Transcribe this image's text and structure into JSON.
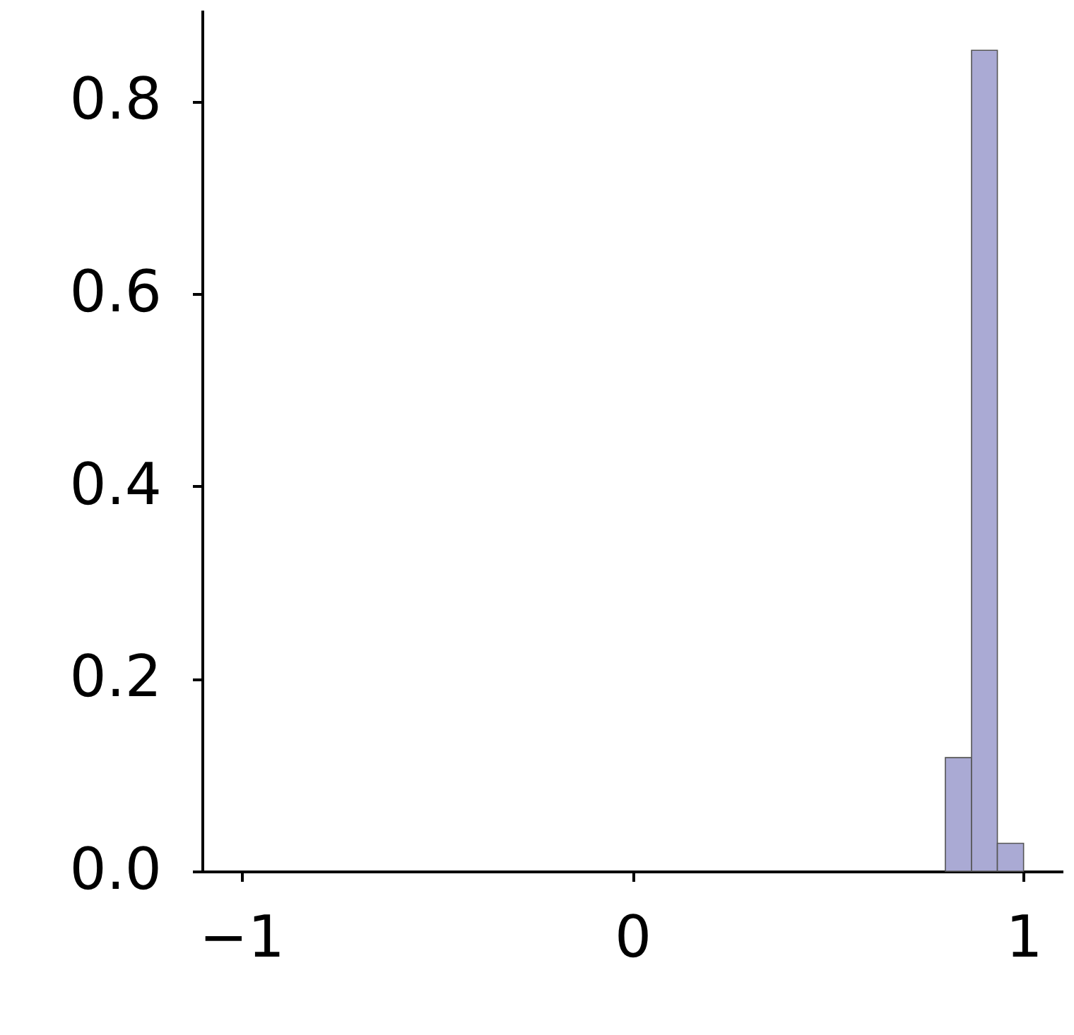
{
  "chart_data": {
    "type": "histogram",
    "bins": [
      0.8,
      0.867,
      0.933,
      1.0
    ],
    "values": [
      0.118,
      0.853,
      0.029
    ],
    "color": "#aaaad4",
    "xlim": [
      -1.1,
      1.1
    ],
    "xticks": [
      -1,
      0,
      1
    ],
    "ylim": [
      0,
      0.895
    ],
    "yticks": [
      {
        "value": 0,
        "label": "0.0"
      },
      0.2,
      0.4,
      0.6,
      0.8
    ]
  }
}
